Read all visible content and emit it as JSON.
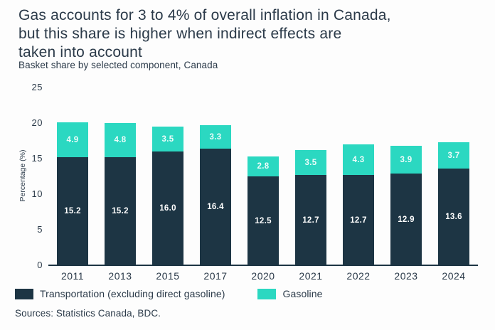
{
  "header": {
    "title": "Gas accounts for 3 to 4% of overall inflation in Canada,\nbut this share is higher when indirect effects are\ntaken into account",
    "subtitle": "Basket share by selected component, Canada"
  },
  "chart_data": {
    "type": "bar",
    "stacked": true,
    "title": "Basket share by selected component, Canada",
    "categories": [
      "2011",
      "2013",
      "2015",
      "2017",
      "2020",
      "2021",
      "2022",
      "2023",
      "2024"
    ],
    "series": [
      {
        "name": "Transportation (excluding direct gasoline)",
        "color": "#1d3544",
        "values": [
          15.2,
          15.2,
          16.0,
          16.4,
          12.5,
          12.7,
          12.7,
          12.9,
          13.6
        ]
      },
      {
        "name": "Gasoline",
        "color": "#2bd8c1",
        "values": [
          4.9,
          4.8,
          3.5,
          3.3,
          2.8,
          3.5,
          4.3,
          3.9,
          3.7
        ]
      }
    ],
    "xlabel": "",
    "ylabel": "Percentage (%)",
    "yticks": [
      0,
      5,
      10,
      15,
      20,
      25
    ],
    "ylim": [
      0,
      25
    ],
    "grid": false,
    "legend_position": "bottom",
    "value_labels_decimals": 1
  },
  "footer": {
    "sources": "Sources: Statistics Canada, BDC."
  },
  "colors": {
    "transportation": "#1d3544",
    "gasoline": "#2bd8c1",
    "text": "#2b3a49",
    "axis": "#1d3544",
    "background": "#fdfdfd"
  }
}
